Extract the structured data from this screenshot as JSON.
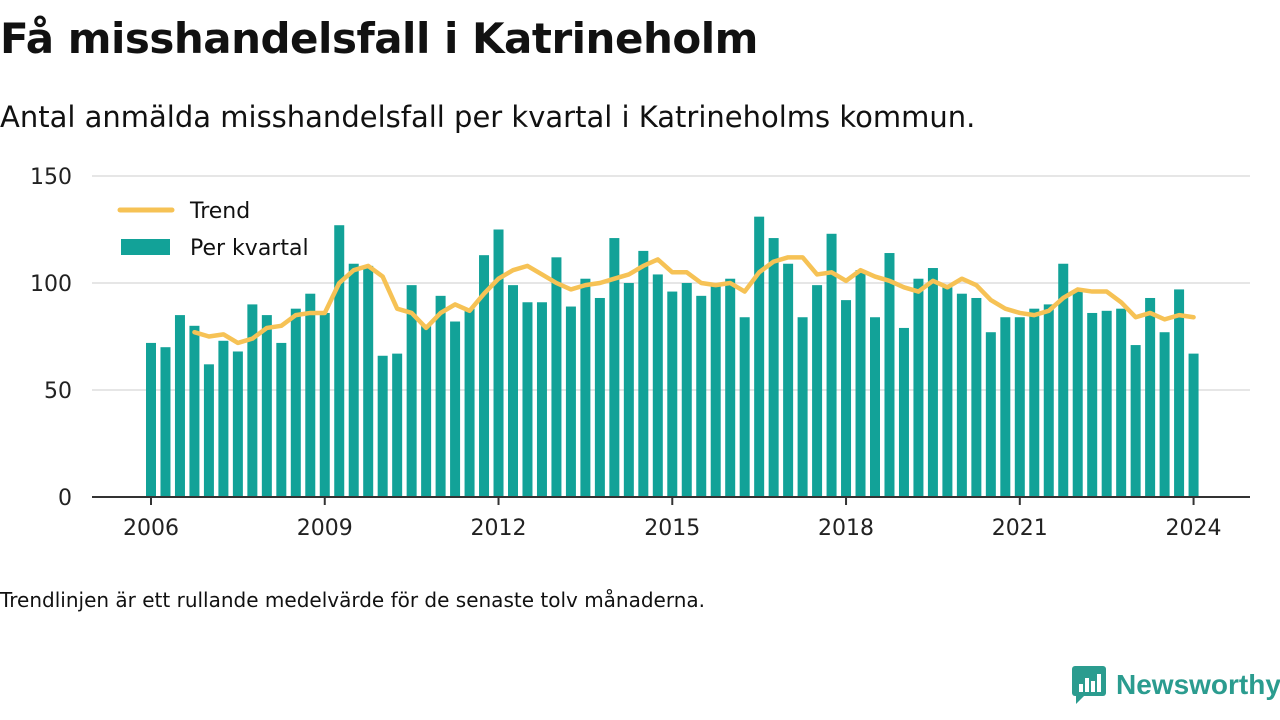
{
  "header": {
    "title": "Få misshandelsfall i Katrineholm",
    "subtitle": "Antal anmälda misshandelsfall per kvartal i Katrineholms kommun."
  },
  "footnote": "Trendlinjen är ett rullande medelvärde för de senaste tolv månaderna.",
  "brand": {
    "name": "Newsworthy",
    "icon": "newsworthy-chat-bars-icon",
    "color": "#2b9c8f"
  },
  "colors": {
    "bar": "#12a298",
    "trend": "#f6c255",
    "grid": "#dddddd",
    "axis": "#333333"
  },
  "chart_data": {
    "type": "bar",
    "ylim": [
      0,
      150
    ],
    "yticks": [
      0,
      50,
      100,
      150
    ],
    "xticks": [
      "2006",
      "2009",
      "2012",
      "2015",
      "2018",
      "2021",
      "2024"
    ],
    "grid": true,
    "legend_position": "top-left",
    "legend": [
      {
        "label": "Trend",
        "kind": "line"
      },
      {
        "label": "Per kvartal",
        "kind": "bar"
      }
    ],
    "categories": [
      "2006 Q1",
      "2006 Q2",
      "2006 Q3",
      "2006 Q4",
      "2007 Q1",
      "2007 Q2",
      "2007 Q3",
      "2007 Q4",
      "2008 Q1",
      "2008 Q2",
      "2008 Q3",
      "2008 Q4",
      "2009 Q1",
      "2009 Q2",
      "2009 Q3",
      "2009 Q4",
      "2010 Q1",
      "2010 Q2",
      "2010 Q3",
      "2010 Q4",
      "2011 Q1",
      "2011 Q2",
      "2011 Q3",
      "2011 Q4",
      "2012 Q1",
      "2012 Q2",
      "2012 Q3",
      "2012 Q4",
      "2013 Q1",
      "2013 Q2",
      "2013 Q3",
      "2013 Q4",
      "2014 Q1",
      "2014 Q2",
      "2014 Q3",
      "2014 Q4",
      "2015 Q1",
      "2015 Q2",
      "2015 Q3",
      "2015 Q4",
      "2016 Q1",
      "2016 Q2",
      "2016 Q3",
      "2016 Q4",
      "2017 Q1",
      "2017 Q2",
      "2017 Q3",
      "2017 Q4",
      "2018 Q1",
      "2018 Q2",
      "2018 Q3",
      "2018 Q4",
      "2019 Q1",
      "2019 Q2",
      "2019 Q3",
      "2019 Q4",
      "2020 Q1",
      "2020 Q2",
      "2020 Q3",
      "2020 Q4",
      "2021 Q1",
      "2021 Q2",
      "2021 Q3",
      "2021 Q4",
      "2022 Q1",
      "2022 Q2",
      "2022 Q3",
      "2022 Q4",
      "2023 Q1",
      "2023 Q2",
      "2023 Q3",
      "2023 Q4",
      "2024 Q1"
    ],
    "series": [
      {
        "name": "Per kvartal",
        "values": [
          72,
          70,
          85,
          80,
          62,
          73,
          68,
          90,
          85,
          72,
          88,
          95,
          86,
          127,
          109,
          108,
          66,
          67,
          99,
          80,
          94,
          82,
          88,
          113,
          125,
          99,
          91,
          91,
          112,
          89,
          102,
          93,
          121,
          100,
          115,
          104,
          96,
          100,
          94,
          99,
          102,
          84,
          131,
          121,
          109,
          84,
          99,
          123,
          92,
          106,
          84,
          114,
          79,
          102,
          107,
          98,
          95,
          93,
          77,
          84,
          84,
          88,
          90,
          109,
          96,
          86,
          87,
          88,
          71,
          93,
          77,
          97,
          67
        ]
      },
      {
        "name": "Trend",
        "values": [
          null,
          null,
          null,
          77,
          75,
          76,
          72,
          74,
          79,
          80,
          85,
          86,
          86,
          100,
          106,
          108,
          103,
          88,
          86,
          79,
          86,
          90,
          87,
          95,
          102,
          106,
          108,
          104,
          100,
          97,
          99,
          100,
          102,
          104,
          108,
          111,
          105,
          105,
          100,
          99,
          100,
          96,
          105,
          110,
          112,
          112,
          104,
          105,
          101,
          106,
          103,
          101,
          98,
          96,
          101,
          98,
          102,
          99,
          92,
          88,
          86,
          85,
          87,
          93,
          97,
          96,
          96,
          91,
          84,
          86,
          83,
          85,
          84
        ]
      }
    ]
  }
}
